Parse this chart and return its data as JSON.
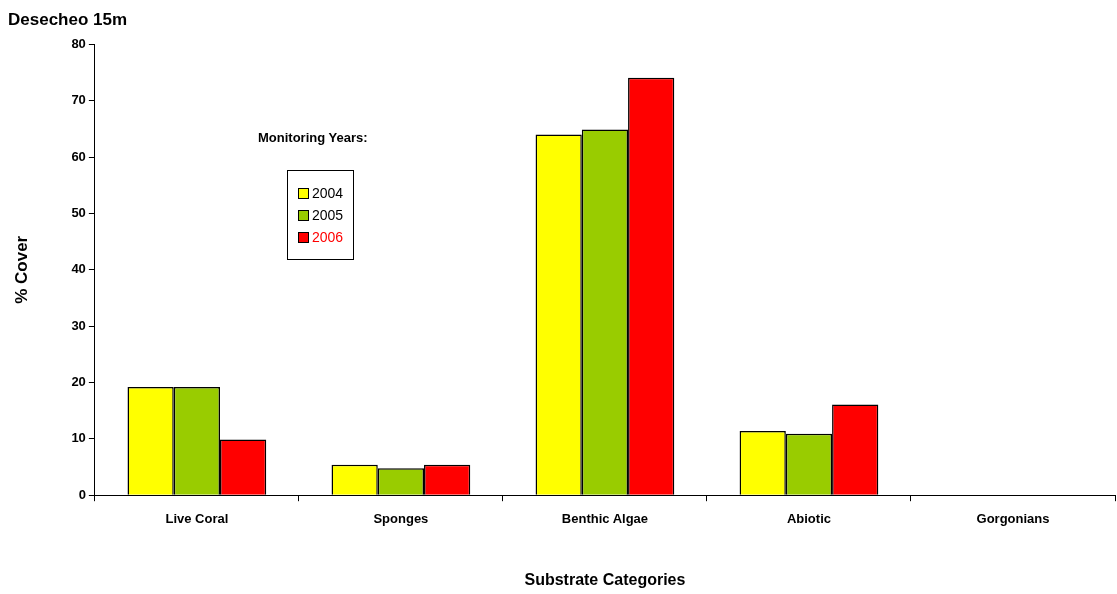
{
  "chart_data": {
    "type": "bar",
    "title": "Desecheo 15m",
    "xlabel": "Substrate Categories",
    "ylabel": "% Cover",
    "legend_title": "Monitoring Years:",
    "categories": [
      "Live Coral",
      "Sponges",
      "Benthic Algae",
      "Abiotic",
      "Gorgonians"
    ],
    "series": [
      {
        "name": "2004",
        "color": "#ffff00",
        "values": [
          19.2,
          5.4,
          64,
          11.4,
          0
        ]
      },
      {
        "name": "2005",
        "color": "#99cc00",
        "values": [
          19.2,
          4.8,
          64.9,
          10.9,
          0
        ]
      },
      {
        "name": "2006",
        "color": "#ff0000",
        "values": [
          9.9,
          5.4,
          74.1,
          16.1,
          0
        ]
      }
    ],
    "ylim": [
      0,
      80
    ],
    "yticks": [
      0,
      10,
      20,
      30,
      40,
      50,
      60,
      70,
      80
    ],
    "grid": false,
    "legend": "top left"
  }
}
